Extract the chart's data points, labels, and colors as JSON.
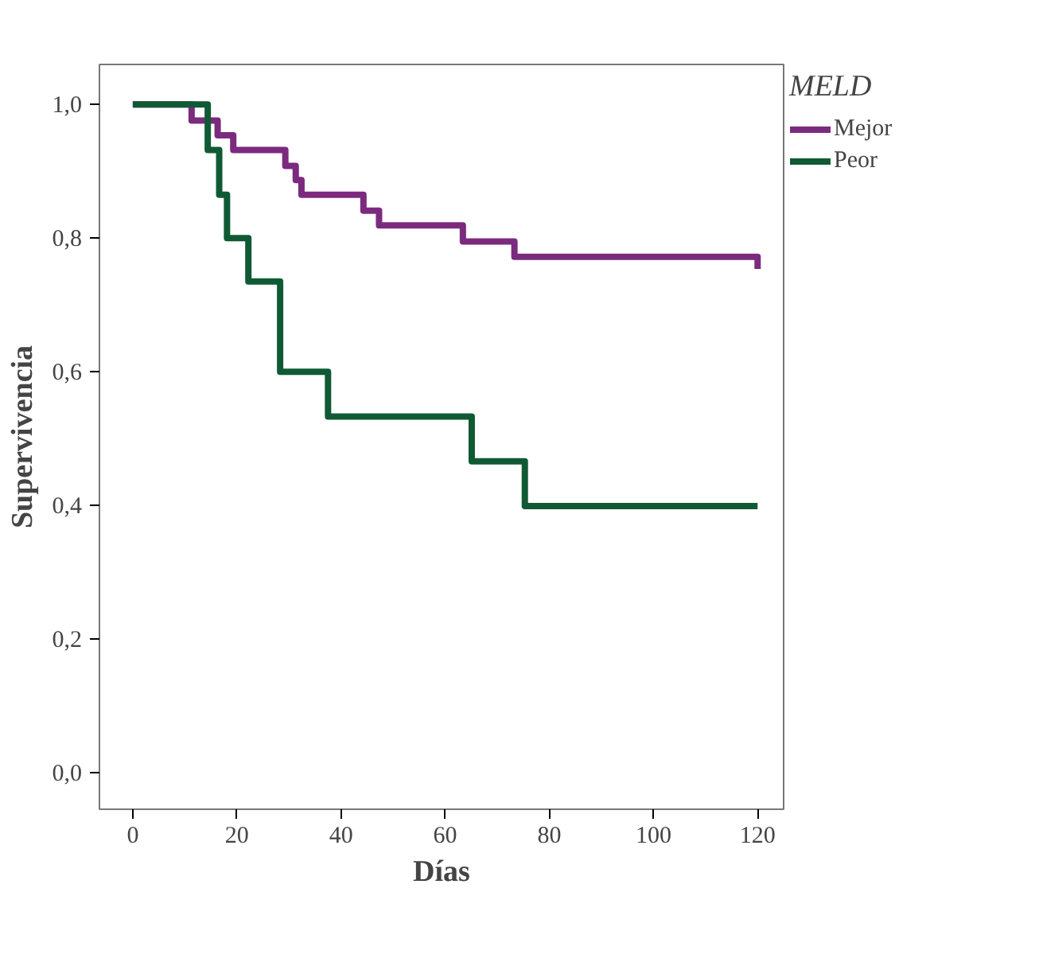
{
  "chart_data": {
    "type": "step",
    "xlabel": "Días",
    "ylabel": "Supervivencia",
    "legend_title": "MELD",
    "legend": "top right",
    "grid": false,
    "xlim": [
      -6.4,
      125
    ],
    "ylim": [
      -0.055,
      1.06
    ],
    "xticks": [
      0,
      20,
      40,
      60,
      80,
      100,
      120
    ],
    "yticks": [
      {
        "value": 0,
        "label": "0,0"
      },
      {
        "value": 0.2,
        "label": "0,2"
      },
      {
        "value": 0.4,
        "label": "0,4"
      },
      {
        "value": 0.6,
        "label": "0,6"
      },
      {
        "value": 0.8,
        "label": "0,8"
      },
      {
        "value": 1,
        "label": "1,0"
      }
    ],
    "series": [
      {
        "name": "Mejor",
        "color": "#7b2a7e",
        "x": [
          0,
          11.3,
          16.3,
          19.3,
          29.3,
          31.3,
          32.4,
          44.3,
          47.3,
          63.4,
          73.3,
          120,
          120
        ],
        "values": [
          1.0,
          0.976,
          0.954,
          0.932,
          0.908,
          0.887,
          0.865,
          0.841,
          0.819,
          0.795,
          0.772,
          0.772,
          0.754
        ]
      },
      {
        "name": "Peor",
        "color": "#0f5a34",
        "x": [
          0,
          14.4,
          16.6,
          18.1,
          22.2,
          28.3,
          37.5,
          65.1,
          75.3,
          120
        ],
        "values": [
          1.0,
          0.932,
          0.865,
          0.8,
          0.735,
          0.6,
          0.533,
          0.466,
          0.399,
          0.399
        ]
      }
    ]
  }
}
